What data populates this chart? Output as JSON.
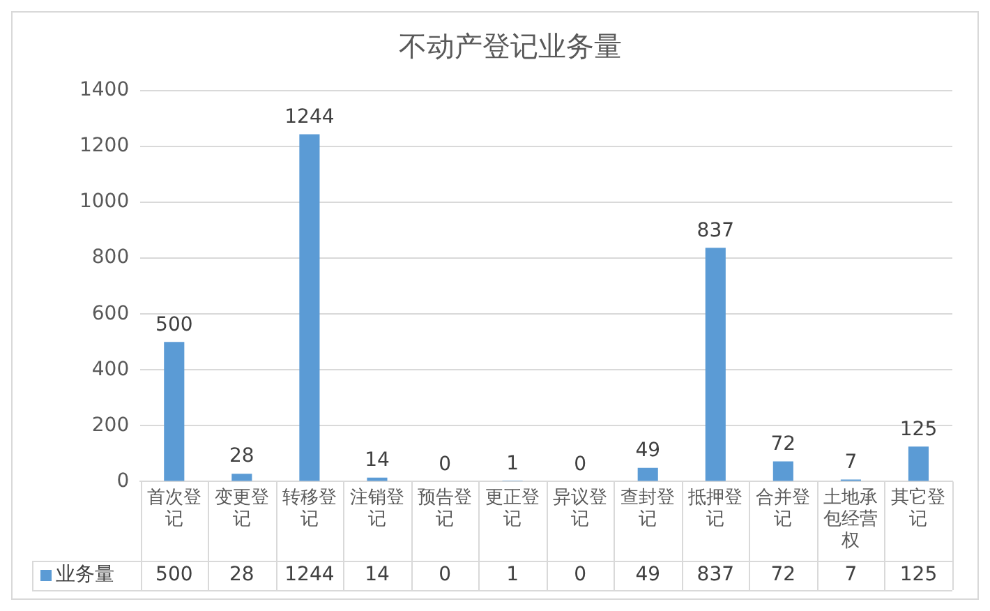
{
  "chart_data": {
    "type": "bar",
    "title": "不动产登记业务量",
    "categories": [
      "首次登记",
      "变更登记",
      "转移登记",
      "注销登记",
      "预告登记",
      "更正登记",
      "异议登记",
      "查封登记",
      "抵押登记",
      "合并登记",
      "土地承包经营权",
      "其它登记"
    ],
    "series": [
      {
        "name": "业务量",
        "color": "#5b9bd5",
        "values": [
          500,
          28,
          1244,
          14,
          0,
          1,
          0,
          49,
          837,
          72,
          7,
          125
        ],
        "value_labels": [
          "500",
          "28",
          "1244",
          "14",
          "0",
          "1",
          "0",
          "49",
          "837",
          "72",
          "7",
          "125"
        ]
      }
    ],
    "ylim": [
      0,
      1400
    ],
    "yticks": [
      0,
      200,
      400,
      600,
      800,
      1000,
      1200,
      1400
    ],
    "grid": "y",
    "legend": "bottom",
    "data_labels": true
  }
}
